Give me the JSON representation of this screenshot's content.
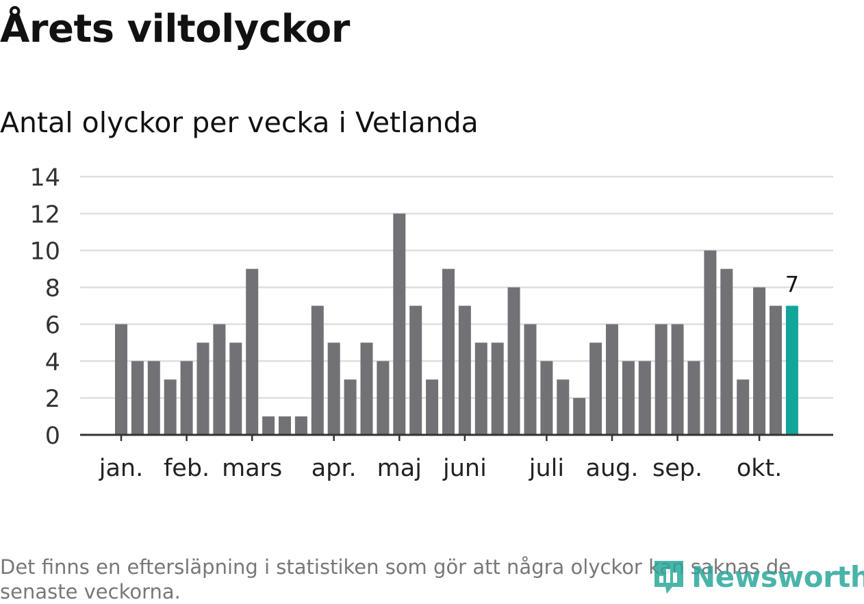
{
  "header": {
    "title": "Årets viltolyckor",
    "subtitle": "Antal olyckor per vecka i Vetlanda"
  },
  "footnote": "Det finns en eftersläpning i statistiken som gör att några olyckor kan saknas de senaste veckorna.",
  "logo": {
    "text": "Newsworthy"
  },
  "colors": {
    "bar": "#727176",
    "highlight": "#12a599",
    "grid": "#dedede",
    "axis": "#333333"
  },
  "chart_data": {
    "type": "bar",
    "title": "Antal olyckor per vecka i Vetlanda",
    "xlabel": "",
    "ylabel": "",
    "ylim": [
      0,
      14
    ],
    "yticks": [
      0,
      2,
      4,
      6,
      8,
      10,
      12,
      14
    ],
    "grid": true,
    "values": [
      6,
      4,
      4,
      3,
      4,
      5,
      6,
      5,
      9,
      1,
      1,
      1,
      7,
      5,
      3,
      5,
      4,
      12,
      7,
      3,
      9,
      7,
      5,
      5,
      8,
      6,
      4,
      3,
      2,
      5,
      6,
      4,
      4,
      6,
      6,
      4,
      10,
      9,
      3,
      8,
      7,
      7
    ],
    "highlight_index": 41,
    "highlight_label": "7",
    "month_labels": [
      {
        "label": "jan.",
        "bar_index": 0
      },
      {
        "label": "feb.",
        "bar_index": 4
      },
      {
        "label": "mars",
        "bar_index": 8
      },
      {
        "label": "apr.",
        "bar_index": 13
      },
      {
        "label": "maj",
        "bar_index": 17
      },
      {
        "label": "juni",
        "bar_index": 21
      },
      {
        "label": "juli",
        "bar_index": 26
      },
      {
        "label": "aug.",
        "bar_index": 30
      },
      {
        "label": "sep.",
        "bar_index": 34
      },
      {
        "label": "okt.",
        "bar_index": 39
      }
    ]
  }
}
